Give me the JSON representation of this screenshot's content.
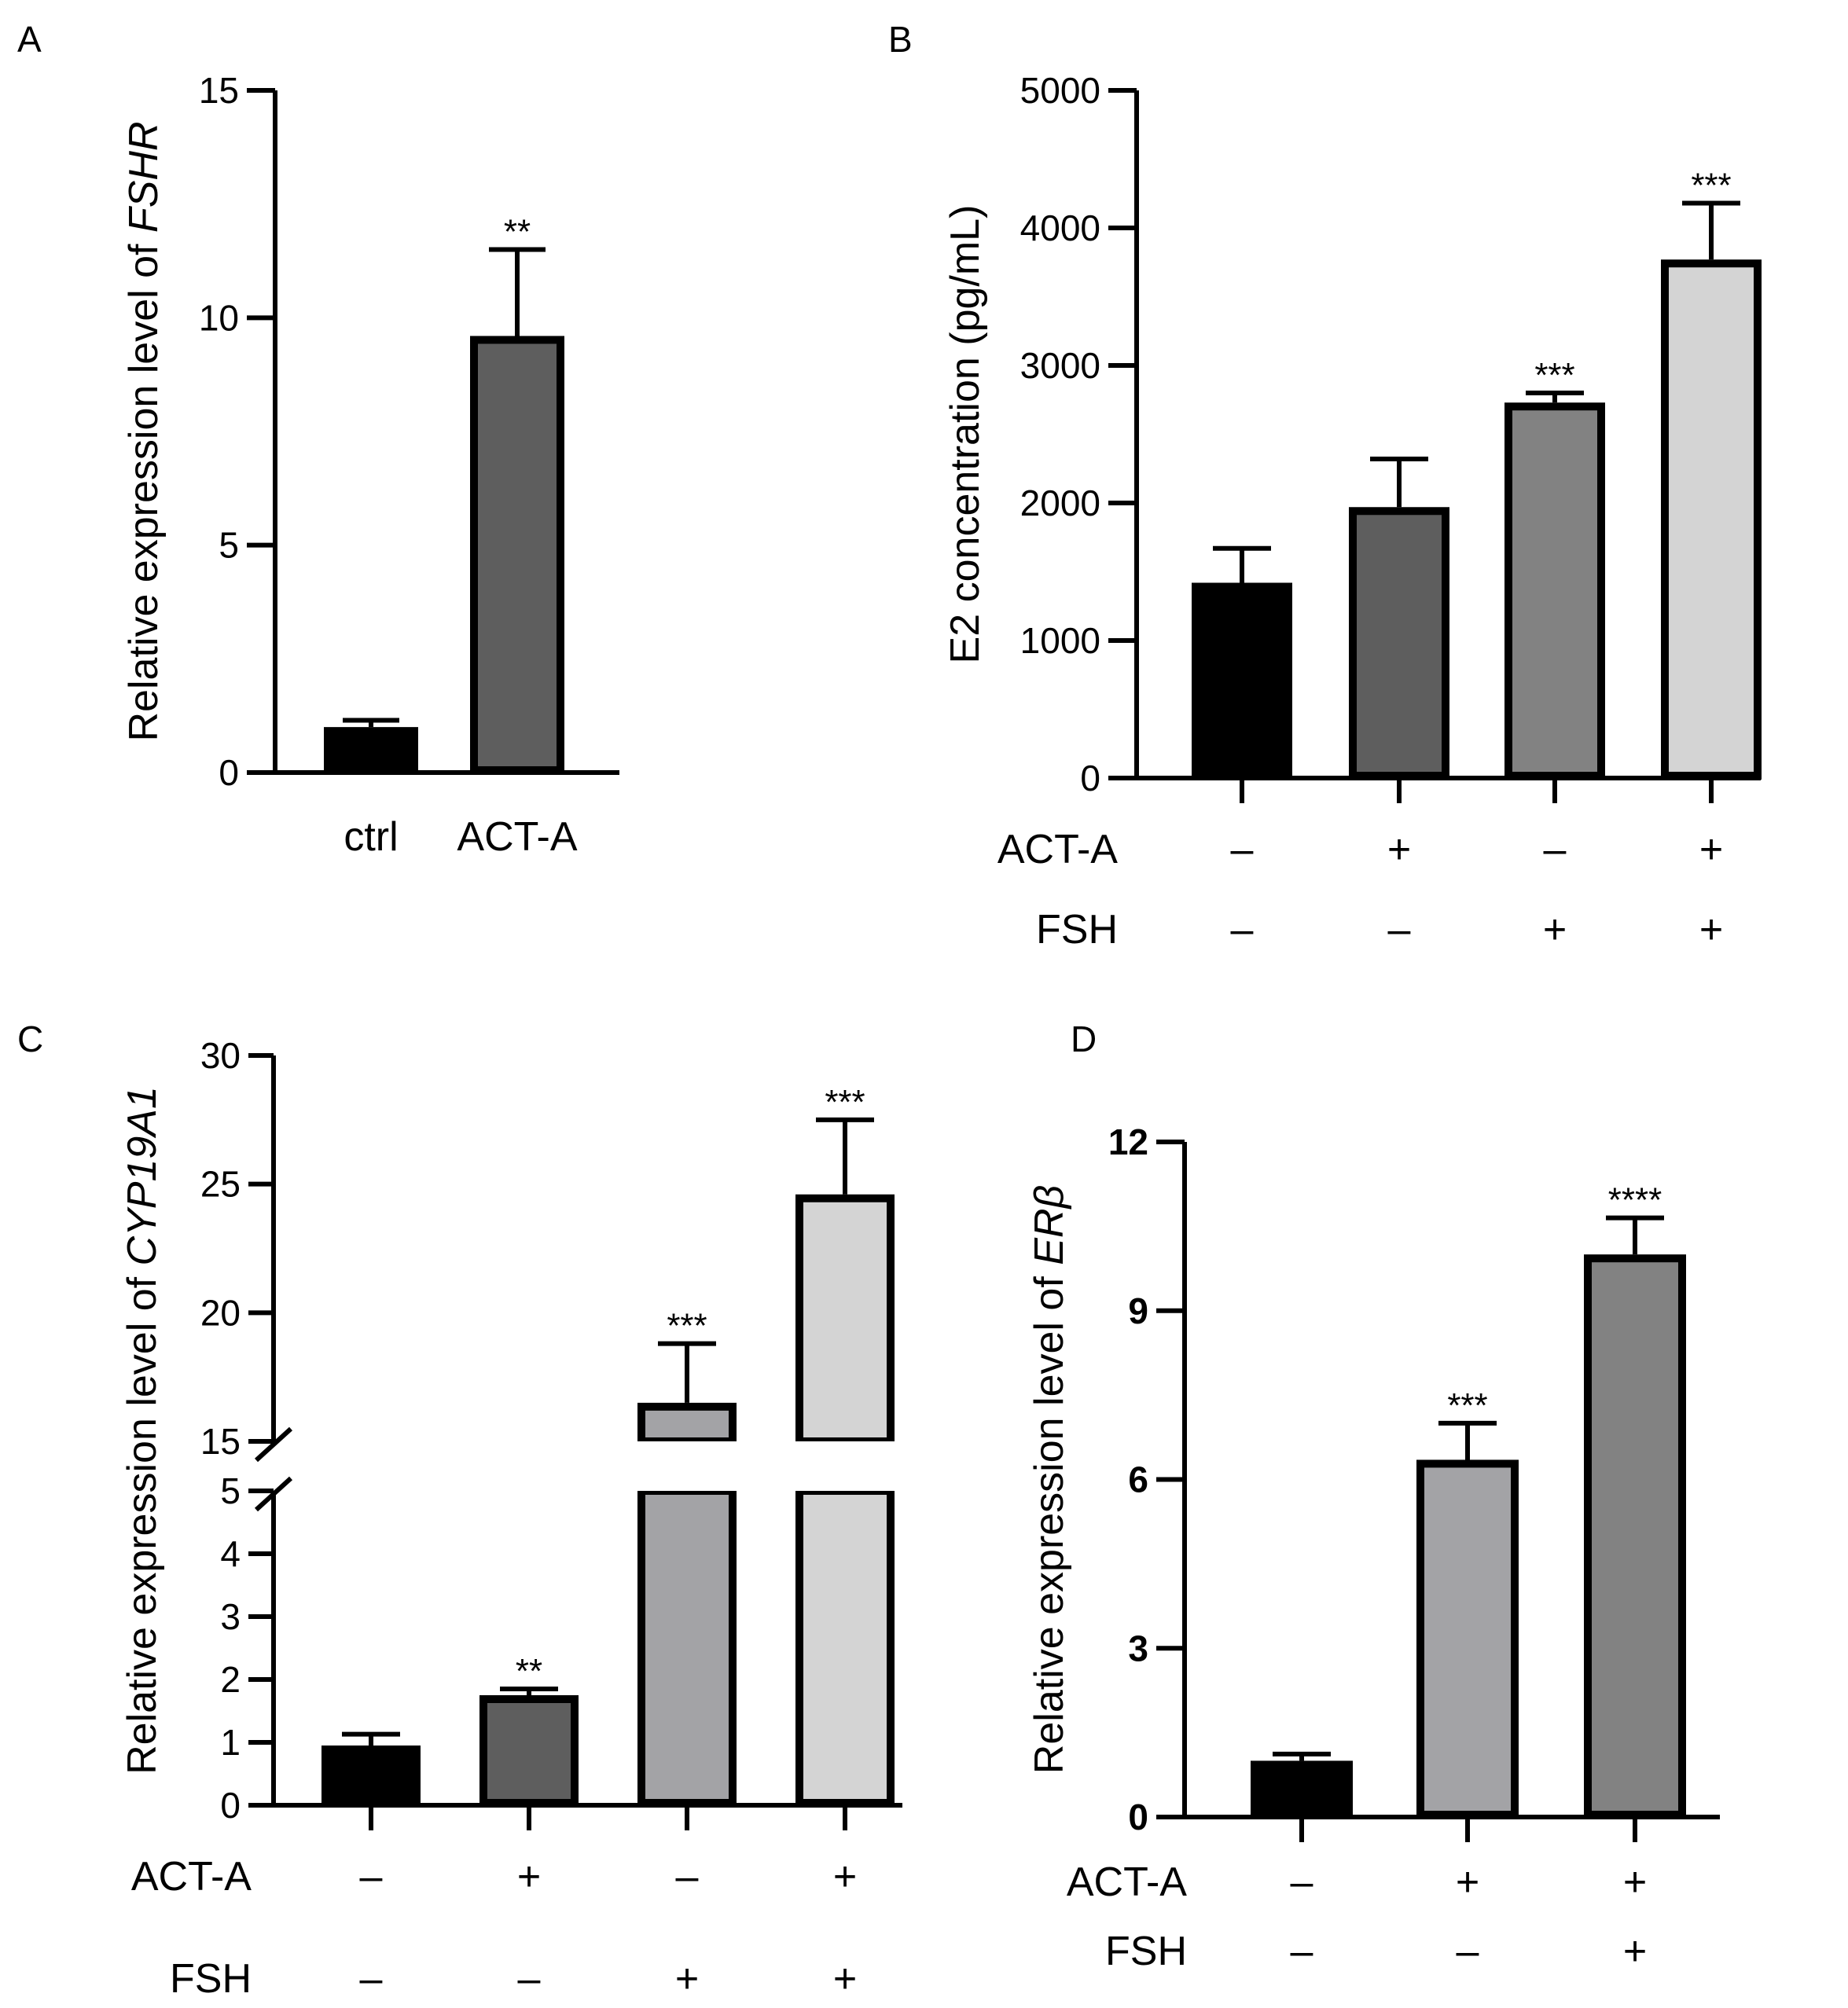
{
  "chart_data": [
    {
      "panel": "A",
      "type": "bar",
      "ylabel": "Relative expression level of ",
      "ylabel_italic": "FSHR",
      "yticks": [
        0,
        5,
        10,
        15
      ],
      "ylim": [
        0,
        15
      ],
      "categories": [
        "ctrl",
        "ACT-A"
      ],
      "values": [
        1.0,
        9.6
      ],
      "errors": [
        0.15,
        1.9
      ],
      "significance": [
        "",
        "**"
      ],
      "colors": [
        "#000000",
        "#5e5e5e"
      ]
    },
    {
      "panel": "B",
      "type": "bar",
      "ylabel": "E2 concentration (pg/mL)",
      "yticks": [
        0,
        1000,
        2000,
        3000,
        4000,
        5000
      ],
      "ylim": [
        0,
        5000
      ],
      "conditions": [
        {
          "name": "ACT-A",
          "values": [
            "–",
            "+",
            "–",
            "+"
          ]
        },
        {
          "name": "FSH",
          "values": [
            "–",
            "–",
            "+",
            "+"
          ]
        }
      ],
      "values": [
        1420,
        1970,
        2730,
        3770
      ],
      "errors": [
        250,
        350,
        70,
        410
      ],
      "significance": [
        "",
        "",
        "***",
        "***"
      ],
      "colors": [
        "#000000",
        "#5e5e5e",
        "#828282",
        "#d4d4d4"
      ]
    },
    {
      "panel": "C",
      "type": "bar",
      "ylabel": "Relative expression level of ",
      "ylabel_italic": "CYP19A1",
      "axis_break": [
        5,
        15
      ],
      "yticks_lower": [
        0,
        1,
        2,
        3,
        4,
        5
      ],
      "yticks_upper": [
        15,
        20,
        25,
        30
      ],
      "ylim": [
        0,
        30
      ],
      "conditions": [
        {
          "name": "ACT-A",
          "values": [
            "–",
            "+",
            "–",
            "+"
          ]
        },
        {
          "name": "FSH",
          "values": [
            "–",
            "–",
            "+",
            "+"
          ]
        }
      ],
      "values": [
        0.95,
        1.75,
        16.5,
        24.6
      ],
      "errors": [
        0.18,
        0.1,
        2.3,
        2.9
      ],
      "significance": [
        "",
        "**",
        "***",
        "***"
      ],
      "colors": [
        "#000000",
        "#5e5e5e",
        "#a3a3a6",
        "#d4d4d4"
      ]
    },
    {
      "panel": "D",
      "type": "bar",
      "ylabel": "Relative expression level of ",
      "ylabel_italic": "ERβ",
      "yticks": [
        0,
        3,
        6,
        9,
        12
      ],
      "ylim": [
        0,
        12
      ],
      "conditions": [
        {
          "name": "ACT-A",
          "values": [
            "–",
            "+",
            "+"
          ]
        },
        {
          "name": "FSH",
          "values": [
            "–",
            "–",
            "+"
          ]
        }
      ],
      "values": [
        1.0,
        6.35,
        10.0
      ],
      "errors": [
        0.12,
        0.65,
        0.65
      ],
      "significance": [
        "",
        "***",
        "****"
      ],
      "colors": [
        "#000000",
        "#a3a3a6",
        "#828282"
      ]
    }
  ]
}
